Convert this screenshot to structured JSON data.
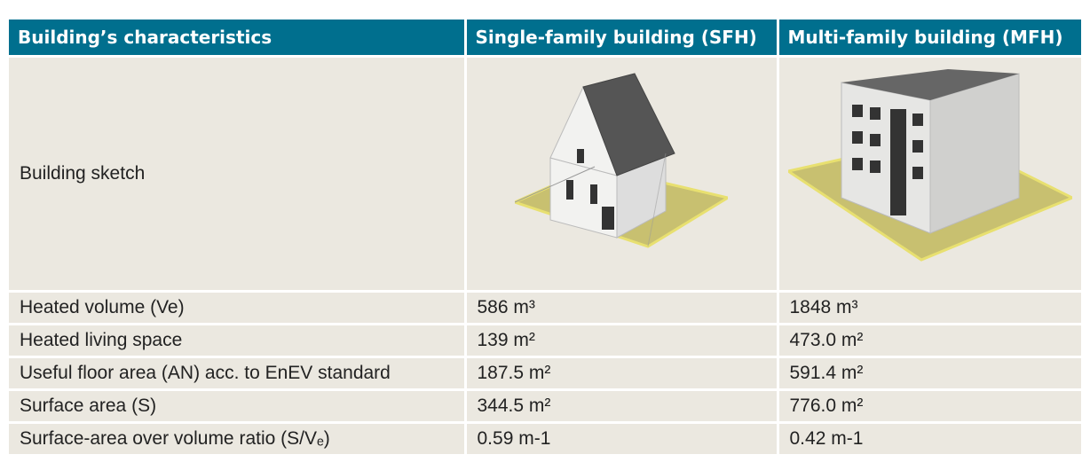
{
  "table": {
    "header": [
      "Building’s characteristics",
      "Single-family building (SFH)",
      "Multi-family building (MFH)"
    ],
    "sketch_row": {
      "label": "Building sketch"
    },
    "rows": [
      [
        "Heated volume (Ve)",
        "586 m³",
        "1848 m³"
      ],
      [
        "Heated living space",
        "139 m²",
        "473.0 m²"
      ],
      [
        "Useful floor area (AN) acc. to EnEV standard",
        "187.5 m²",
        "591.4 m²"
      ],
      [
        "Surface area (S)",
        "344.5 m²",
        "776.0 m²"
      ],
      [
        "Surface-area over volume ratio (S/Vₑ)",
        "0.59 m-1",
        "0.42 m-1"
      ]
    ]
  }
}
